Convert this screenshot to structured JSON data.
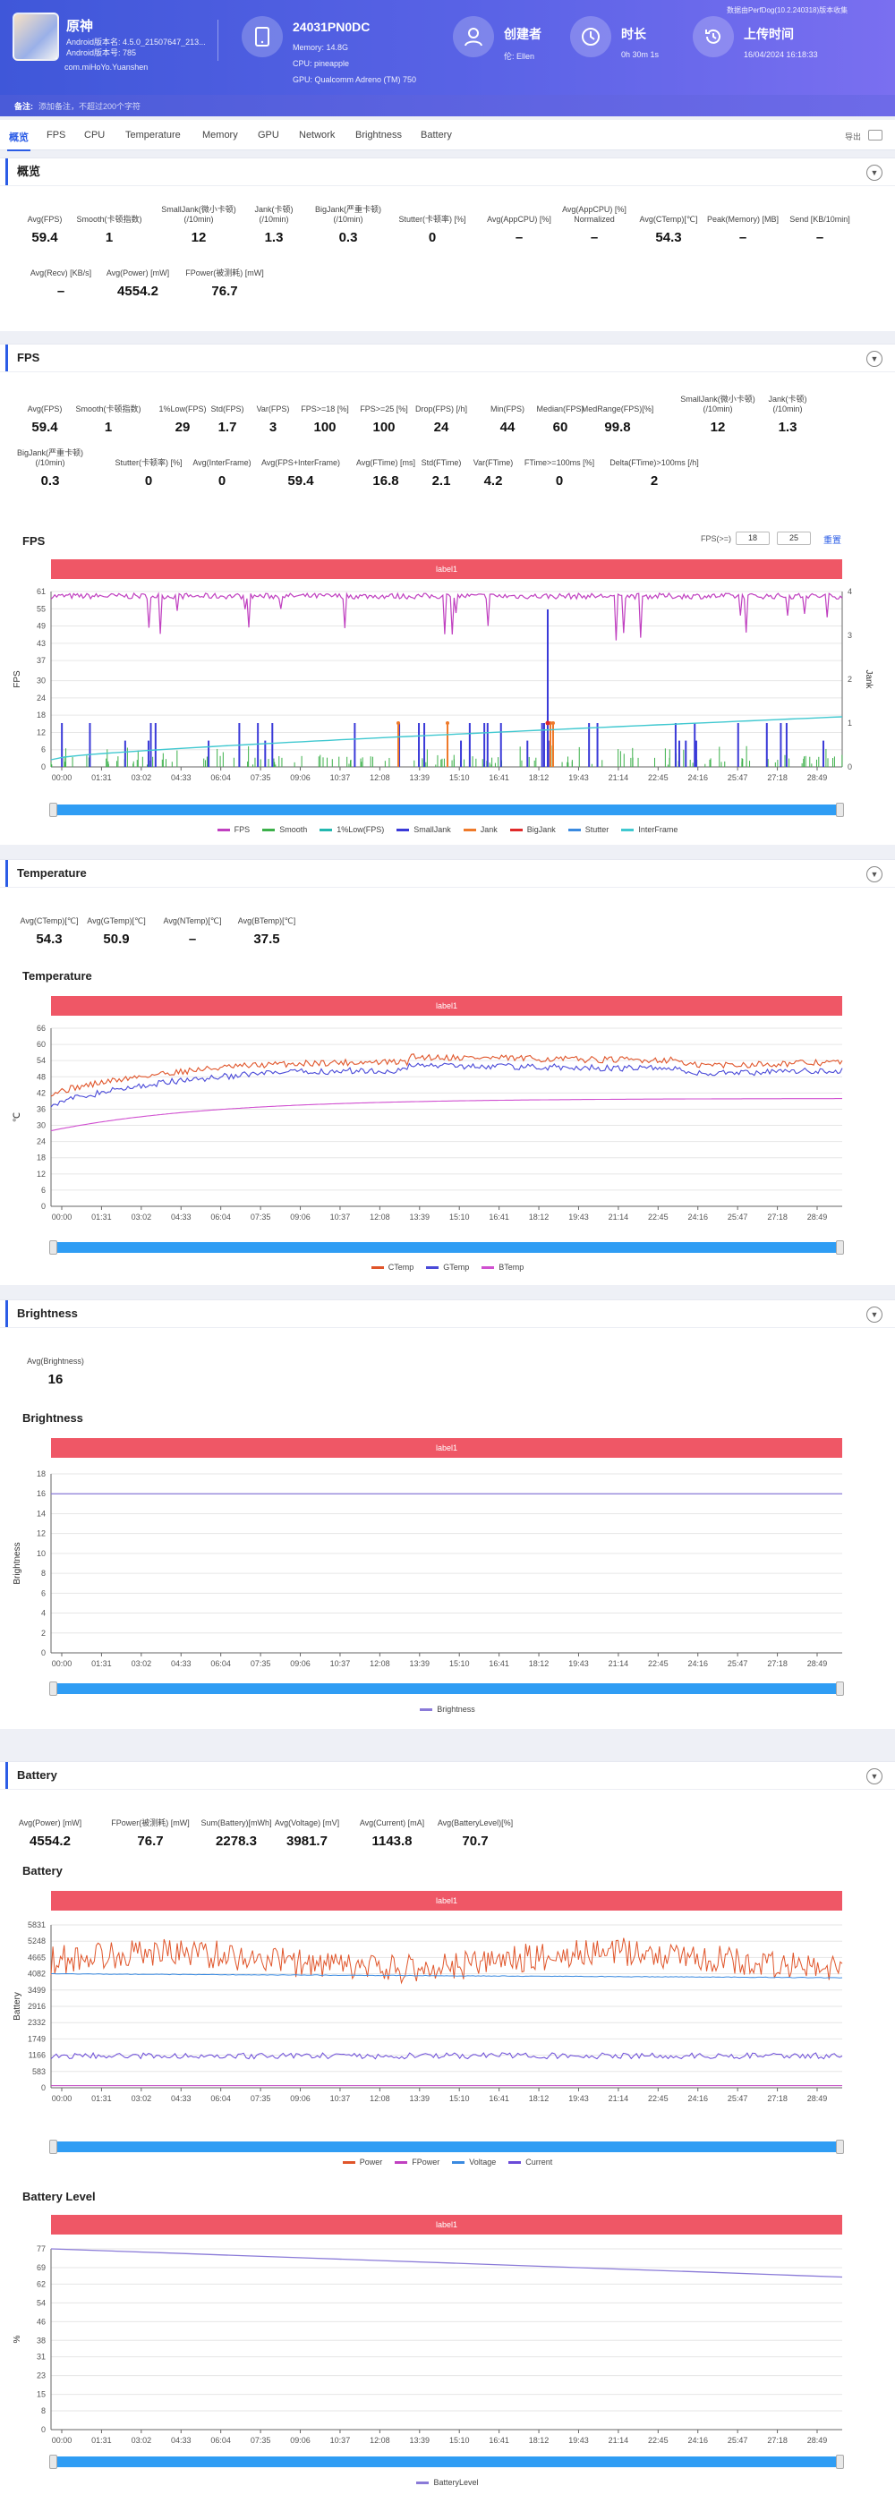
{
  "header": {
    "app_name": "原神",
    "app_lines": [
      "Android版本名: 4.5.0_21507647_213...",
      "Android版本号: 785",
      "com.miHoYo.Yuanshen"
    ],
    "device_name": "24031PN0DC",
    "device_lines": [
      "Memory: 14.8G",
      "CPU: pineapple",
      "GPU: Qualcomm Adreno (TM) 750"
    ],
    "creator_title": "创建者",
    "creator_value": "伦: Ellen",
    "duration_title": "时长",
    "duration_value": "0h 30m 1s",
    "upload_title": "上传时间",
    "upload_value": "16/04/2024 16:18:33",
    "source_note": "数据由PerfDog(10.2.240318)版本收集",
    "note_label": "备注:",
    "note_placeholder": "添加备注，不超过200个字符"
  },
  "tabs": [
    "概览",
    "FPS",
    "CPU",
    "Temperature",
    "Memory",
    "GPU",
    "Network",
    "Brightness",
    "Battery"
  ],
  "export_label": "导出",
  "overview": {
    "title": "概览",
    "row1": [
      {
        "label": "Avg(FPS)",
        "value": "59.4"
      },
      {
        "label": "Smooth(卡顿指数)",
        "value": "1"
      },
      {
        "label": "SmallJank(微小卡顿)\n(/10min)",
        "value": "12"
      },
      {
        "label": "Jank(卡顿)\n(/10min)",
        "value": "1.3"
      },
      {
        "label": "BigJank(严重卡顿)\n(/10min)",
        "value": "0.3"
      },
      {
        "label": "Stutter(卡顿率) [%]",
        "value": "0"
      },
      {
        "label": "Avg(AppCPU) [%]",
        "value": "–"
      },
      {
        "label": "Avg(AppCPU) [%]\nNormalized",
        "value": "–"
      },
      {
        "label": "Avg(CTemp)[℃]",
        "value": "54.3"
      },
      {
        "label": "Peak(Memory) [MB]",
        "value": "–"
      },
      {
        "label": "Send [KB/10min]",
        "value": "–"
      }
    ],
    "row2": [
      {
        "label": "Avg(Recv) [KB/s]",
        "value": "–"
      },
      {
        "label": "Avg(Power) [mW]",
        "value": "4554.2"
      },
      {
        "label": "FPower(被测耗) [mW]",
        "value": "76.7"
      }
    ]
  },
  "fps": {
    "title": "FPS",
    "row1": [
      {
        "label": "Avg(FPS)",
        "value": "59.4"
      },
      {
        "label": "Smooth(卡顿指数)",
        "value": "1"
      },
      {
        "label": "1%Low(FPS)",
        "value": "29"
      },
      {
        "label": "Std(FPS)",
        "value": "1.7"
      },
      {
        "label": "Var(FPS)",
        "value": "3"
      },
      {
        "label": "FPS>=18 [%]",
        "value": "100"
      },
      {
        "label": "FPS>=25 [%]",
        "value": "100"
      },
      {
        "label": "Drop(FPS) [/h]",
        "value": "24"
      },
      {
        "label": "Min(FPS)",
        "value": "44"
      },
      {
        "label": "Median(FPS)",
        "value": "60"
      },
      {
        "label": "MedRange(FPS)[%]",
        "value": "99.8"
      },
      {
        "label": "SmallJank(微小卡顿)\n(/10min)",
        "value": "12"
      },
      {
        "label": "Jank(卡顿)\n(/10min)",
        "value": "1.3"
      }
    ],
    "row2": [
      {
        "label": "BigJank(严重卡顿)\n(/10min)",
        "value": "0.3"
      },
      {
        "label": "Stutter(卡顿率) [%]",
        "value": "0"
      },
      {
        "label": "Avg(InterFrame)",
        "value": "0"
      },
      {
        "label": "Avg(FPS+InterFrame)",
        "value": "59.4"
      },
      {
        "label": "Avg(FTime) [ms]",
        "value": "16.8"
      },
      {
        "label": "Std(FTime)",
        "value": "2.1"
      },
      {
        "label": "Var(FTime)",
        "value": "4.2"
      },
      {
        "label": "FTime>=100ms [%]",
        "value": "0"
      },
      {
        "label": "Delta(FTime)>100ms [/h]",
        "value": "2"
      }
    ],
    "chart_title": "FPS",
    "label_bar": "label1",
    "threshold_label": "FPS(>=)",
    "threshold_1": "18",
    "threshold_2": "25",
    "reset_label": "重置"
  },
  "temperature": {
    "title": "Temperature",
    "stats": [
      {
        "label": "Avg(CTemp)[℃]",
        "value": "54.3"
      },
      {
        "label": "Avg(GTemp)[℃]",
        "value": "50.9"
      },
      {
        "label": "Avg(NTemp)[℃]",
        "value": "–"
      },
      {
        "label": "Avg(BTemp)[℃]",
        "value": "37.5"
      }
    ],
    "chart_title": "Temperature",
    "label_bar": "label1"
  },
  "brightness": {
    "title": "Brightness",
    "stats": [
      {
        "label": "Avg(Brightness)",
        "value": "16"
      }
    ],
    "chart_title": "Brightness",
    "label_bar": "label1"
  },
  "battery": {
    "title": "Battery",
    "stats": [
      {
        "label": "Avg(Power) [mW]",
        "value": "4554.2"
      },
      {
        "label": "FPower(被测耗) [mW]",
        "value": "76.7"
      },
      {
        "label": "Sum(Battery)[mWh]",
        "value": "2278.3"
      },
      {
        "label": "Avg(Voltage) [mV]",
        "value": "3981.7"
      },
      {
        "label": "Avg(Current) [mA]",
        "value": "1143.8"
      },
      {
        "label": "Avg(BatteryLevel)[%]",
        "value": "70.7"
      }
    ],
    "chart_title": "Battery",
    "label_bar": "label1",
    "level_chart_title": "Battery Level",
    "level_label_bar": "label1"
  },
  "colors": {
    "accent": "#2b5ce6",
    "label_bar": "#ef5766",
    "slider": "#2f9df4"
  },
  "chart_data": [
    {
      "id": "fps",
      "type": "line",
      "ylabel": "FPS",
      "y2label": "Jank",
      "ylim": [
        0,
        61
      ],
      "y2lim": [
        0,
        4
      ],
      "yticks": [
        "0",
        "6",
        "12",
        "18",
        "24",
        "30",
        "37",
        "43",
        "49",
        "55",
        "61"
      ],
      "y2ticks": [
        "0",
        "1",
        "2",
        "3",
        "4"
      ],
      "x": [
        "00:00",
        "01:31",
        "03:02",
        "04:33",
        "06:04",
        "07:35",
        "09:06",
        "10:37",
        "12:08",
        "13:39",
        "15:10",
        "16:41",
        "18:12",
        "19:43",
        "21:14",
        "22:45",
        "24:16",
        "25:47",
        "27:18",
        "28:49"
      ],
      "series": [
        {
          "name": "FPS",
          "color": "#c040c0",
          "mean": 59.4,
          "noise": 1.0
        },
        {
          "name": "Smooth",
          "color": "#3cb04a"
        },
        {
          "name": "1%Low(FPS)",
          "color": "#23b8b0"
        },
        {
          "name": "SmallJank",
          "color": "#3a3ad8"
        },
        {
          "name": "Jank",
          "color": "#ef7a2a"
        },
        {
          "name": "BigJank",
          "color": "#e02a2a"
        },
        {
          "name": "Stutter",
          "color": "#3a8ae0"
        },
        {
          "name": "InterFrame",
          "color": "#40c8d0"
        }
      ],
      "legend_position": "bottom"
    },
    {
      "id": "temperature",
      "type": "line",
      "ylabel": "℃",
      "ylim": [
        0,
        66
      ],
      "yticks": [
        "0",
        "6",
        "12",
        "18",
        "24",
        "30",
        "36",
        "42",
        "48",
        "54",
        "60",
        "66"
      ],
      "x": [
        "00:00",
        "01:31",
        "03:02",
        "04:33",
        "06:04",
        "07:35",
        "09:06",
        "10:37",
        "12:08",
        "13:39",
        "15:10",
        "16:41",
        "18:12",
        "19:43",
        "21:14",
        "22:45",
        "24:16",
        "25:47",
        "27:18",
        "28:49"
      ],
      "series": [
        {
          "name": "CTemp",
          "color": "#e0552a",
          "start": 42,
          "end": 54,
          "peak": 58
        },
        {
          "name": "GTemp",
          "color": "#4a4ad8",
          "start": 38,
          "end": 51,
          "peak": 54
        },
        {
          "name": "BTemp",
          "color": "#d050d0",
          "start": 28,
          "end": 40,
          "peak": 41
        }
      ],
      "legend_position": "bottom"
    },
    {
      "id": "brightness",
      "type": "line",
      "ylabel": "Brightness",
      "ylim": [
        0,
        18
      ],
      "yticks": [
        "0",
        "2",
        "4",
        "6",
        "8",
        "10",
        "12",
        "14",
        "16",
        "18"
      ],
      "x": [
        "00:00",
        "01:31",
        "03:02",
        "04:33",
        "06:04",
        "07:35",
        "09:06",
        "10:37",
        "12:08",
        "13:39",
        "15:10",
        "16:41",
        "18:12",
        "19:43",
        "21:14",
        "22:45",
        "24:16",
        "25:47",
        "27:18",
        "28:49"
      ],
      "series": [
        {
          "name": "Brightness",
          "color": "#8a7ad8",
          "value": 16
        }
      ],
      "legend_position": "bottom"
    },
    {
      "id": "battery",
      "type": "line",
      "ylabel": "Battery",
      "ylim": [
        0,
        5831
      ],
      "yticks": [
        "0",
        "583",
        "1166",
        "1749",
        "2332",
        "2916",
        "3499",
        "4082",
        "4665",
        "5248",
        "5831"
      ],
      "x": [
        "00:00",
        "01:31",
        "03:02",
        "04:33",
        "06:04",
        "07:35",
        "09:06",
        "10:37",
        "12:08",
        "13:39",
        "15:10",
        "16:41",
        "18:12",
        "19:43",
        "21:14",
        "22:45",
        "24:16",
        "25:47",
        "27:18",
        "28:49"
      ],
      "series": [
        {
          "name": "Power",
          "color": "#e0552a",
          "mean": 4554
        },
        {
          "name": "FPower",
          "color": "#c040c0",
          "mean": 77
        },
        {
          "name": "Voltage",
          "color": "#3a8ae0",
          "mean": 3982
        },
        {
          "name": "Current",
          "color": "#6a4ad8",
          "mean": 1144
        }
      ],
      "legend_position": "bottom"
    },
    {
      "id": "battery_level",
      "type": "line",
      "ylabel": "%",
      "ylim": [
        0,
        77
      ],
      "yticks": [
        "0",
        "8",
        "15",
        "23",
        "31",
        "38",
        "46",
        "54",
        "62",
        "69",
        "77"
      ],
      "x": [
        "00:00",
        "01:31",
        "03:02",
        "04:33",
        "06:04",
        "07:35",
        "09:06",
        "10:37",
        "12:08",
        "13:39",
        "15:10",
        "16:41",
        "18:12",
        "19:43",
        "21:14",
        "22:45",
        "24:16",
        "25:47",
        "27:18",
        "28:49"
      ],
      "series": [
        {
          "name": "BatteryLevel",
          "color": "#8a7ad8",
          "start": 77,
          "end": 65
        }
      ],
      "legend_position": "bottom"
    }
  ]
}
